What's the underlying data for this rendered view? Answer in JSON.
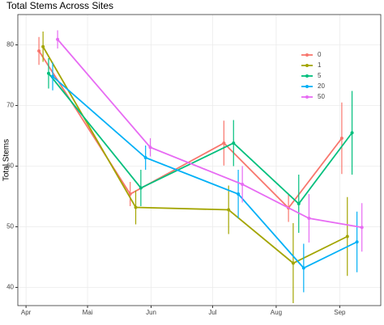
{
  "chart_data": {
    "type": "line",
    "title": "Total Stems Across Sites",
    "y_label": "Total Stems",
    "x": [
      [
        6.3,
        50.8,
        96.5,
        128,
        154
      ],
      [
        8.3,
        53.5,
        98.8,
        130.3,
        156.7
      ],
      [
        11,
        56,
        101.2,
        133,
        159
      ],
      [
        13,
        58.3,
        103.5,
        135.4,
        161.4
      ],
      [
        15.4,
        60.6,
        105.5,
        138,
        163.8
      ]
    ],
    "series": [
      {
        "name": "0",
        "color": "#F8766D",
        "values": [
          79.0,
          55.4,
          63.8,
          53.1,
          64.6
        ],
        "errors": [
          2.3,
          2,
          3.7,
          2.3,
          5.9
        ]
      },
      {
        "name": "1",
        "color": "#A3A500",
        "values": [
          79.7,
          53.2,
          52.8,
          44.0,
          48.4
        ],
        "errors": [
          2.5,
          2.8,
          4,
          6.6,
          6.5
        ]
      },
      {
        "name": "5",
        "color": "#00BF7D",
        "values": [
          75.3,
          56.4,
          63.8,
          53.8,
          65.5
        ],
        "errors": [
          2.5,
          3,
          3.8,
          4.8,
          6.9
        ]
      },
      {
        "name": "20",
        "color": "#00B0F6",
        "values": [
          74.8,
          61.4,
          55.4,
          43.2,
          47.5
        ],
        "errors": [
          2.3,
          2,
          4,
          4,
          5
        ]
      },
      {
        "name": "50",
        "color": "#E76BF3",
        "values": [
          80.9,
          63.1,
          57.0,
          51.4,
          49.9
        ],
        "errors": [
          1.5,
          1.5,
          3,
          4,
          4
        ]
      }
    ],
    "xlim": [
      -4,
      173
    ],
    "xticks": [
      {
        "value": 0,
        "label": "Apr"
      },
      {
        "value": 30,
        "label": "Mai"
      },
      {
        "value": 61,
        "label": "Jun"
      },
      {
        "value": 91,
        "label": "Jul"
      },
      {
        "value": 122,
        "label": "Aug"
      },
      {
        "value": 153,
        "label": "Sep"
      }
    ],
    "ylim": [
      37,
      85
    ],
    "yticks": [
      40,
      50,
      60,
      70,
      80
    ],
    "grid": true,
    "legend": "top-right"
  }
}
